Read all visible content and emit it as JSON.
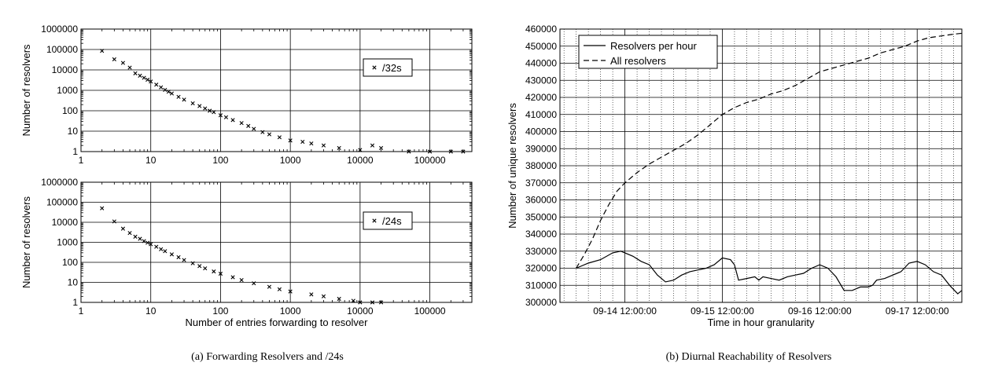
{
  "chart_data": [
    {
      "type": "scatter",
      "xscale": "log",
      "yscale": "log",
      "xlim": [
        1,
        400000
      ],
      "ylim": [
        1,
        1000000
      ],
      "xticks": [
        "1",
        "10",
        "100",
        "1000",
        "10000",
        "100000"
      ],
      "yticks": [
        "1",
        "10",
        "100",
        "1000",
        "10000",
        "100000",
        "1000000"
      ],
      "ylabel": "Number of resolvers",
      "xlabel": "",
      "grid": true,
      "legend_position": "right",
      "series": [
        {
          "name": "/32s",
          "marker": "x",
          "points": [
            [
              2,
              85000
            ],
            [
              3,
              33000
            ],
            [
              4,
              22000
            ],
            [
              5,
              13000
            ],
            [
              6,
              6800
            ],
            [
              7,
              5200
            ],
            [
              8,
              4100
            ],
            [
              9,
              3300
            ],
            [
              10,
              2700
            ],
            [
              12,
              1900
            ],
            [
              14,
              1400
            ],
            [
              16,
              1050
            ],
            [
              18,
              850
            ],
            [
              20,
              700
            ],
            [
              25,
              480
            ],
            [
              30,
              350
            ],
            [
              40,
              230
            ],
            [
              50,
              170
            ],
            [
              60,
              130
            ],
            [
              70,
              100
            ],
            [
              80,
              85
            ],
            [
              100,
              60
            ],
            [
              120,
              48
            ],
            [
              150,
              35
            ],
            [
              200,
              25
            ],
            [
              250,
              18
            ],
            [
              300,
              13
            ],
            [
              400,
              9
            ],
            [
              500,
              7
            ],
            [
              700,
              5
            ],
            [
              1000,
              3.5
            ],
            [
              1500,
              3
            ],
            [
              2000,
              2.5
            ],
            [
              3000,
              2
            ],
            [
              5000,
              1.5
            ],
            [
              10000,
              1.2
            ],
            [
              15000,
              2
            ],
            [
              20000,
              1.5
            ],
            [
              50000,
              1
            ],
            [
              100000,
              1
            ],
            [
              200000,
              1
            ],
            [
              300000,
              1
            ]
          ]
        }
      ]
    },
    {
      "type": "scatter",
      "xscale": "log",
      "yscale": "log",
      "xlim": [
        1,
        400000
      ],
      "ylim": [
        1,
        1000000
      ],
      "xticks": [
        "1",
        "10",
        "100",
        "1000",
        "10000",
        "100000"
      ],
      "yticks": [
        "1",
        "10",
        "100",
        "1000",
        "10000",
        "100000",
        "1000000"
      ],
      "ylabel": "Number of resolvers",
      "xlabel": "Number of entries forwarding to resolver",
      "grid": true,
      "legend_position": "right",
      "series": [
        {
          "name": "/24s",
          "marker": "x",
          "points": [
            [
              2,
              50000
            ],
            [
              3,
              11000
            ],
            [
              4,
              4800
            ],
            [
              5,
              2900
            ],
            [
              6,
              1900
            ],
            [
              7,
              1500
            ],
            [
              8,
              1150
            ],
            [
              9,
              950
            ],
            [
              10,
              800
            ],
            [
              12,
              600
            ],
            [
              14,
              450
            ],
            [
              16,
              360
            ],
            [
              20,
              250
            ],
            [
              25,
              180
            ],
            [
              30,
              130
            ],
            [
              40,
              90
            ],
            [
              50,
              65
            ],
            [
              60,
              50
            ],
            [
              80,
              35
            ],
            [
              100,
              27
            ],
            [
              150,
              18
            ],
            [
              200,
              13
            ],
            [
              300,
              9
            ],
            [
              500,
              6
            ],
            [
              700,
              4.5
            ],
            [
              1000,
              3.5
            ],
            [
              2000,
              2.5
            ],
            [
              3000,
              2
            ],
            [
              5000,
              1.5
            ],
            [
              8000,
              1.2
            ],
            [
              10000,
              1
            ],
            [
              15000,
              1
            ],
            [
              20000,
              1
            ]
          ]
        }
      ]
    },
    {
      "type": "line",
      "xlim": [
        "09-13 20:00",
        "09-17 23:00"
      ],
      "ylim": [
        300000,
        460000
      ],
      "xticks": [
        "09-14 12:00:00",
        "09-15 12:00:00",
        "09-16 12:00:00",
        "09-17 12:00:00"
      ],
      "yticks": [
        "300000",
        "310000",
        "320000",
        "330000",
        "340000",
        "350000",
        "360000",
        "370000",
        "380000",
        "390000",
        "400000",
        "410000",
        "420000",
        "430000",
        "440000",
        "450000",
        "460000"
      ],
      "ylabel": "Number of unique resolvers",
      "xlabel": "Time in hour granularity",
      "grid": true,
      "legend_position": "top-left",
      "series": [
        {
          "name": "Resolvers per hour",
          "style": "solid",
          "points": [
            [
              "09-14 00:00",
              320000
            ],
            [
              "09-14 03:00",
              323000
            ],
            [
              "09-14 06:00",
              325000
            ],
            [
              "09-14 09:00",
              329000
            ],
            [
              "09-14 11:00",
              330000
            ],
            [
              "09-14 14:00",
              327000
            ],
            [
              "09-14 16:00",
              324000
            ],
            [
              "09-14 18:00",
              322000
            ],
            [
              "09-14 20:00",
              316000
            ],
            [
              "09-14 22:00",
              312000
            ],
            [
              "09-15 00:00",
              313000
            ],
            [
              "09-15 02:00",
              316000
            ],
            [
              "09-15 04:00",
              318000
            ],
            [
              "09-15 06:00",
              319000
            ],
            [
              "09-15 08:00",
              320000
            ],
            [
              "09-15 10:00",
              322000
            ],
            [
              "09-15 12:00",
              326000
            ],
            [
              "09-15 14:00",
              325000
            ],
            [
              "09-15 15:00",
              322000
            ],
            [
              "09-15 16:00",
              313000
            ],
            [
              "09-15 18:00",
              314000
            ],
            [
              "09-15 20:00",
              315000
            ],
            [
              "09-15 21:00",
              313000
            ],
            [
              "09-15 22:00",
              315000
            ],
            [
              "09-16 00:00",
              314000
            ],
            [
              "09-16 02:00",
              313000
            ],
            [
              "09-16 04:00",
              315000
            ],
            [
              "09-16 06:00",
              316000
            ],
            [
              "09-16 08:00",
              317000
            ],
            [
              "09-16 10:00",
              320000
            ],
            [
              "09-16 12:00",
              322000
            ],
            [
              "09-16 14:00",
              320000
            ],
            [
              "09-16 16:00",
              315000
            ],
            [
              "09-16 18:00",
              307000
            ],
            [
              "09-16 20:00",
              307000
            ],
            [
              "09-16 22:00",
              309000
            ],
            [
              "09-17 00:00",
              309000
            ],
            [
              "09-17 01:00",
              310000
            ],
            [
              "09-17 02:00",
              313000
            ],
            [
              "09-17 04:00",
              314000
            ],
            [
              "09-17 06:00",
              316000
            ],
            [
              "09-17 08:00",
              318000
            ],
            [
              "09-17 10:00",
              323000
            ],
            [
              "09-17 12:00",
              324000
            ],
            [
              "09-17 14:00",
              322000
            ],
            [
              "09-17 16:00",
              318000
            ],
            [
              "09-17 18:00",
              316000
            ],
            [
              "09-17 20:00",
              310000
            ],
            [
              "09-17 22:00",
              305000
            ],
            [
              "09-17 23:00",
              307000
            ]
          ]
        },
        {
          "name": "All resolvers",
          "style": "dashed",
          "points": [
            [
              "09-14 00:00",
              320000
            ],
            [
              "09-14 02:00",
              328000
            ],
            [
              "09-14 04:00",
              337000
            ],
            [
              "09-14 06:00",
              348000
            ],
            [
              "09-14 08:00",
              357000
            ],
            [
              "09-14 10:00",
              365000
            ],
            [
              "09-14 12:00",
              370000
            ],
            [
              "09-14 15:00",
              376000
            ],
            [
              "09-14 18:00",
              381000
            ],
            [
              "09-14 21:00",
              385000
            ],
            [
              "09-15 00:00",
              389000
            ],
            [
              "09-15 03:00",
              393000
            ],
            [
              "09-15 06:00",
              398000
            ],
            [
              "09-15 09:00",
              404000
            ],
            [
              "09-15 12:00",
              410000
            ],
            [
              "09-15 15:00",
              414000
            ],
            [
              "09-15 18:00",
              417000
            ],
            [
              "09-15 21:00",
              419000
            ],
            [
              "09-16 00:00",
              422000
            ],
            [
              "09-16 03:00",
              424000
            ],
            [
              "09-16 06:00",
              427000
            ],
            [
              "09-16 09:00",
              431000
            ],
            [
              "09-16 12:00",
              435000
            ],
            [
              "09-16 15:00",
              437000
            ],
            [
              "09-16 18:00",
              439000
            ],
            [
              "09-16 21:00",
              441000
            ],
            [
              "09-17 00:00",
              443000
            ],
            [
              "09-17 03:00",
              446000
            ],
            [
              "09-17 06:00",
              448000
            ],
            [
              "09-17 09:00",
              450000
            ],
            [
              "09-17 12:00",
              453000
            ],
            [
              "09-17 15:00",
              455000
            ],
            [
              "09-17 18:00",
              456000
            ],
            [
              "09-17 21:00",
              457000
            ],
            [
              "09-17 23:00",
              457500
            ]
          ]
        }
      ]
    }
  ],
  "captions": {
    "left": "(a)  Forwarding Resolvers and /24s",
    "right": "(b)  Diurnal Reachability of Resolvers"
  }
}
